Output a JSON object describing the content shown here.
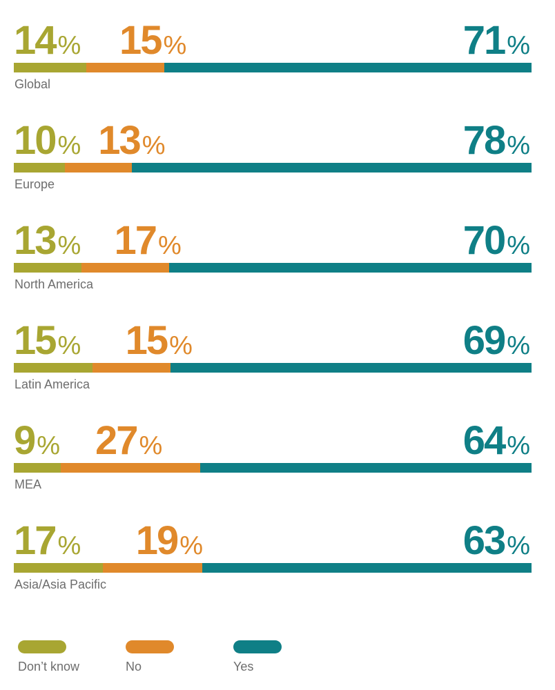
{
  "colors": {
    "dont_know": "#a8a632",
    "no": "#e0892b",
    "yes": "#0f7f86"
  },
  "percent_sign": "%",
  "chart_data": {
    "type": "bar",
    "orientation": "horizontal",
    "stacked": true,
    "normalized": true,
    "categories": [
      "Global",
      "Europe",
      "North America",
      "Latin America",
      "MEA",
      "Asia/Asia Pacific"
    ],
    "series": [
      {
        "name": "Don’t know",
        "key": "dont_know",
        "values": [
          14,
          10,
          13,
          15,
          9,
          17
        ]
      },
      {
        "name": "No",
        "key": "no",
        "values": [
          15,
          13,
          17,
          15,
          27,
          19
        ]
      },
      {
        "name": "Yes",
        "key": "yes",
        "values": [
          71,
          78,
          70,
          69,
          64,
          63
        ]
      }
    ],
    "legend": {
      "position": "bottom",
      "items": [
        "Don’t know",
        "No",
        "Yes"
      ]
    }
  }
}
